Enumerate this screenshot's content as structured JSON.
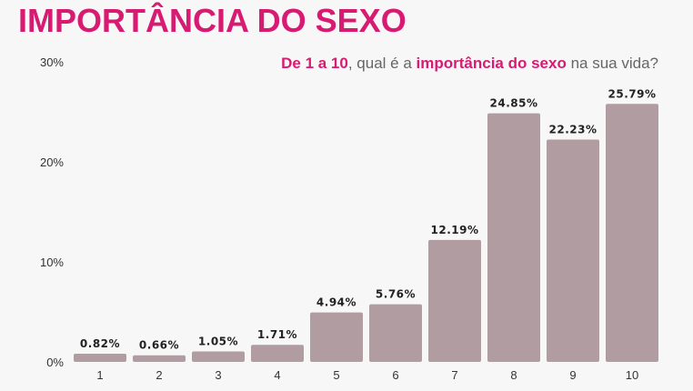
{
  "title": "IMPORTÂNCIA DO SEXO",
  "question": {
    "part1": "De 1 a 10",
    "part2": ", qual é a ",
    "part3": "importância do sexo",
    "part4": " na sua vida?"
  },
  "colors": {
    "accent": "#d81b72",
    "bar": "#b19ca1",
    "background": "#f7f7f7"
  },
  "chart_data": {
    "type": "bar",
    "categories": [
      "1",
      "2",
      "3",
      "4",
      "5",
      "6",
      "7",
      "8",
      "9",
      "10"
    ],
    "values": [
      0.82,
      0.66,
      1.05,
      1.71,
      4.94,
      5.76,
      12.19,
      24.85,
      22.23,
      25.79
    ],
    "value_labels": [
      "0.82%",
      "0.66%",
      "1.05%",
      "1.71%",
      "4.94%",
      "5.76%",
      "12.19%",
      "24.85%",
      "22.23%",
      "25.79%"
    ],
    "yticks": [
      "0%",
      "10%",
      "20%",
      "30%"
    ],
    "ylim": [
      0,
      30
    ],
    "grid": false
  }
}
